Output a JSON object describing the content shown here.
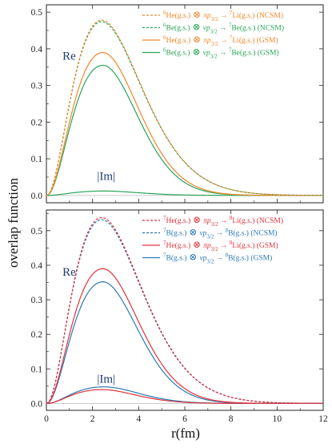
{
  "figure": {
    "ylabel": "overlap function",
    "xlabel": "r(fm)"
  },
  "chart_data": [
    {
      "type": "line",
      "panel": "top",
      "xlim": [
        0,
        12
      ],
      "ylim": [
        -0.02,
        0.52
      ],
      "x_ticks": [
        0,
        2,
        4,
        6,
        8,
        10,
        12
      ],
      "y_ticks": [
        0.0,
        0.1,
        0.2,
        0.3,
        0.4,
        0.5
      ],
      "y_tick_labels": [
        "0.0",
        "0.1",
        "0.2",
        "0.3",
        "0.4",
        "0.5"
      ],
      "annotations": [
        {
          "text": "Re",
          "x": 0.7,
          "y": 0.37
        },
        {
          "text": "|Im|",
          "x": 2.2,
          "y": 0.042
        }
      ],
      "legend": {
        "placement": "top-right"
      },
      "series": [
        {
          "legend_prefix": "6",
          "legend_a": "He(g.s.)",
          "legend_op": "⊗",
          "legend_orb": "πp",
          "legend_sub": "3/2",
          "legend_arrow": "→",
          "legend_mass": "7",
          "legend_b": "Li(g.s.) (NCSM)",
          "color": "#f0862a",
          "dash": "3,2",
          "peak_r": 2.4,
          "peak_y": 0.478,
          "tail_decay": 0.86
        },
        {
          "legend_prefix": "6",
          "legend_a": "Be(g.s.)",
          "legend_op": "⊗",
          "legend_orb": "νp",
          "legend_sub": "3/2",
          "legend_arrow": "→",
          "legend_mass": "7",
          "legend_b": "Be(g.s.) (NCSM)",
          "color": "#2aa55a",
          "dash": "3,2",
          "peak_r": 2.4,
          "peak_y": 0.474,
          "tail_decay": 0.86
        },
        {
          "legend_prefix": "6",
          "legend_a": "He(g.s.)",
          "legend_op": "⊗",
          "legend_orb": "πp",
          "legend_sub": "3/2",
          "legend_arrow": "→",
          "legend_mass": "7",
          "legend_b": "Li(g.s.) (GSM)",
          "color": "#f0862a",
          "dash": "",
          "peak_r": 2.45,
          "peak_y": 0.39,
          "tail_decay": 0.62
        },
        {
          "legend_prefix": "6",
          "legend_a": "Be(g.s.)",
          "legend_op": "⊗",
          "legend_orb": "νp",
          "legend_sub": "3/2",
          "legend_arrow": "→",
          "legend_mass": "7",
          "legend_b": "Be(g.s.) (GSM)",
          "color": "#2aa55a",
          "dash": "",
          "peak_r": 2.45,
          "peak_y": 0.355,
          "tail_decay": 0.58
        },
        {
          "legend_prefix": "",
          "legend_a": "",
          "legend_op": "",
          "legend_orb": "",
          "legend_sub": "",
          "legend_arrow": "",
          "legend_mass": "",
          "legend_b": "",
          "color": "#2aa55a",
          "dash": "",
          "peak_r": 2.5,
          "peak_y": 0.012,
          "tail_decay": 0.55,
          "no_legend": true
        }
      ]
    },
    {
      "type": "line",
      "panel": "bottom",
      "xlim": [
        0,
        12
      ],
      "ylim": [
        -0.02,
        0.56
      ],
      "x_ticks": [
        0,
        2,
        4,
        6,
        8,
        10,
        12
      ],
      "x_tick_labels": [
        "0",
        "2",
        "4",
        "6",
        "8",
        "10",
        "12"
      ],
      "y_ticks": [
        0.0,
        0.1,
        0.2,
        0.3,
        0.4,
        0.5
      ],
      "y_tick_labels": [
        "0.0",
        "0.1",
        "0.2",
        "0.3",
        "0.4",
        "0.5"
      ],
      "annotations": [
        {
          "text": "Re",
          "x": 0.7,
          "y": 0.37
        },
        {
          "text": "|Im|",
          "x": 2.2,
          "y": 0.06
        }
      ],
      "legend": {
        "placement": "top-right"
      },
      "series": [
        {
          "legend_prefix": "7",
          "legend_a": "He(g.s.)",
          "legend_op": "⊗",
          "legend_orb": "πp",
          "legend_sub": "3/2",
          "legend_arrow": "→",
          "legend_mass": "8",
          "legend_b": "Li(g.s.) (NCSM)",
          "color": "#e0333c",
          "dash": "3,2",
          "peak_r": 2.4,
          "peak_y": 0.538,
          "tail_decay": 0.86
        },
        {
          "legend_prefix": "7",
          "legend_a": "B(g.s.)",
          "legend_op": "⊗",
          "legend_orb": "νp",
          "legend_sub": "3/2",
          "legend_arrow": "→",
          "legend_mass": "8",
          "legend_b": "B(g.s.) (NCSM)",
          "color": "#2a7ab8",
          "dash": "3,2",
          "peak_r": 2.4,
          "peak_y": 0.532,
          "tail_decay": 0.86
        },
        {
          "legend_prefix": "7",
          "legend_a": "He(g.s.)",
          "legend_op": "⊗",
          "legend_orb": "πp",
          "legend_sub": "3/2",
          "legend_arrow": "→",
          "legend_mass": "8",
          "legend_b": "Li(g.s.) (GSM)",
          "color": "#e0333c",
          "dash": "",
          "peak_r": 2.45,
          "peak_y": 0.39,
          "tail_decay": 0.62
        },
        {
          "legend_prefix": "7",
          "legend_a": "B(g.s.)",
          "legend_op": "⊗",
          "legend_orb": "νp",
          "legend_sub": "3/2",
          "legend_arrow": "→",
          "legend_mass": "8",
          "legend_b": "B(g.s.) (GSM)",
          "color": "#2a7ab8",
          "dash": "",
          "peak_r": 2.45,
          "peak_y": 0.352,
          "tail_decay": 0.58
        },
        {
          "legend_prefix": "",
          "legend_a": "",
          "legend_op": "",
          "legend_orb": "",
          "legend_sub": "",
          "legend_arrow": "",
          "legend_mass": "",
          "legend_b": "",
          "color": "#e0333c",
          "dash": "",
          "peak_r": 2.4,
          "peak_y": 0.04,
          "tail_decay": 0.55,
          "no_legend": true
        },
        {
          "legend_prefix": "",
          "legend_a": "",
          "legend_op": "",
          "legend_orb": "",
          "legend_sub": "",
          "legend_arrow": "",
          "legend_mass": "",
          "legend_b": "",
          "color": "#2a7ab8",
          "dash": "",
          "peak_r": 2.5,
          "peak_y": 0.048,
          "tail_decay": 0.55,
          "no_legend": true
        }
      ]
    }
  ]
}
